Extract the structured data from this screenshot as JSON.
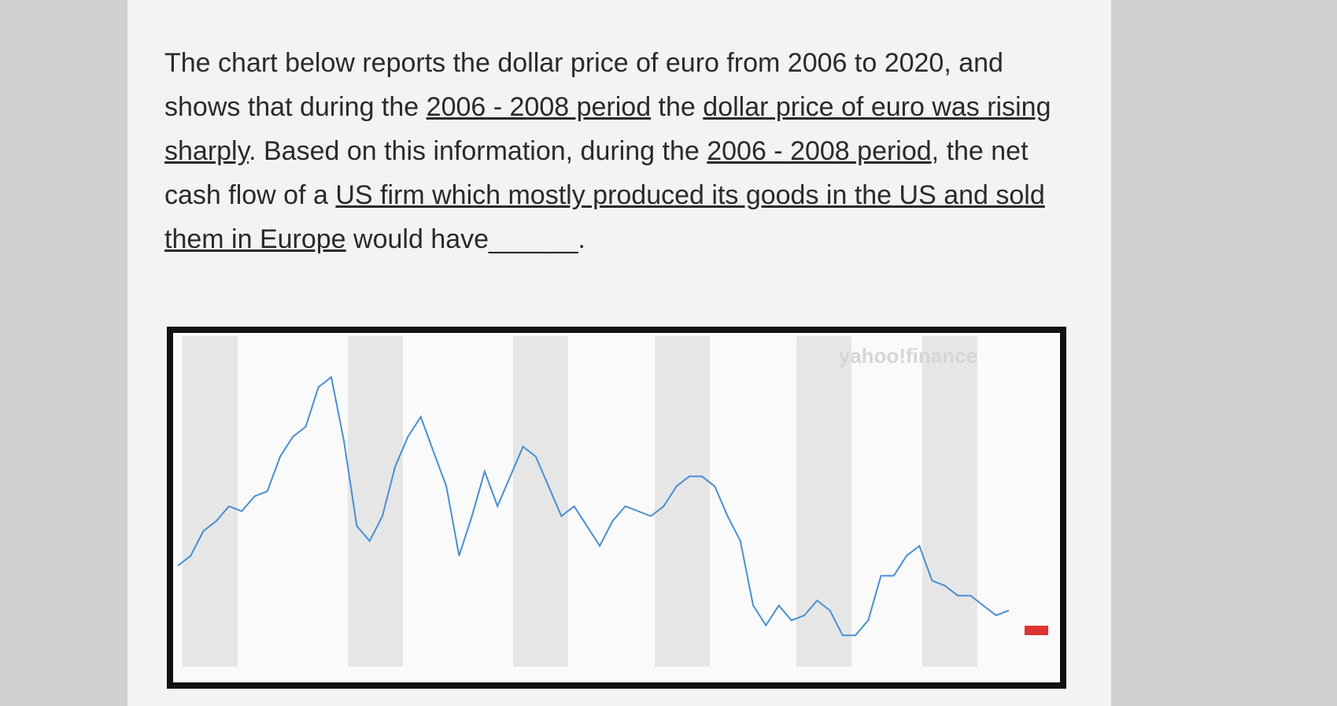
{
  "question": {
    "segments": [
      {
        "text": "The chart below reports the dollar price of euro from 2006 to 2020, and shows that during the ",
        "underline": false
      },
      {
        "text": "2006 - 2008 period",
        "underline": true
      },
      {
        "text": " the ",
        "underline": false
      },
      {
        "text": "dollar price of euro was rising sharply",
        "underline": true
      },
      {
        "text": ". Based on this information, during the ",
        "underline": false
      },
      {
        "text": "2006 - 2008 period",
        "underline": true
      },
      {
        "text": ", the net cash flow of a ",
        "underline": false
      },
      {
        "text": "US firm which mostly produced its goods in the US and sold them in Europe",
        "underline": true
      },
      {
        "text": " would have______.",
        "underline": false
      }
    ]
  },
  "chart_data": {
    "type": "line",
    "watermark": "yahoo!finance",
    "color": "#4a8fd0",
    "values": [
      1.2,
      1.22,
      1.27,
      1.29,
      1.32,
      1.31,
      1.34,
      1.35,
      1.42,
      1.46,
      1.48,
      1.56,
      1.58,
      1.45,
      1.28,
      1.25,
      1.3,
      1.4,
      1.46,
      1.5,
      1.43,
      1.36,
      1.22,
      1.3,
      1.39,
      1.32,
      1.38,
      1.44,
      1.42,
      1.36,
      1.3,
      1.32,
      1.28,
      1.24,
      1.29,
      1.32,
      1.31,
      1.3,
      1.32,
      1.36,
      1.38,
      1.38,
      1.36,
      1.3,
      1.25,
      1.12,
      1.08,
      1.12,
      1.09,
      1.1,
      1.13,
      1.11,
      1.06,
      1.06,
      1.09,
      1.18,
      1.18,
      1.22,
      1.24,
      1.17,
      1.16,
      1.14,
      1.14,
      1.12,
      1.1,
      1.11
    ],
    "ylim": [
      1.0,
      1.65
    ]
  }
}
